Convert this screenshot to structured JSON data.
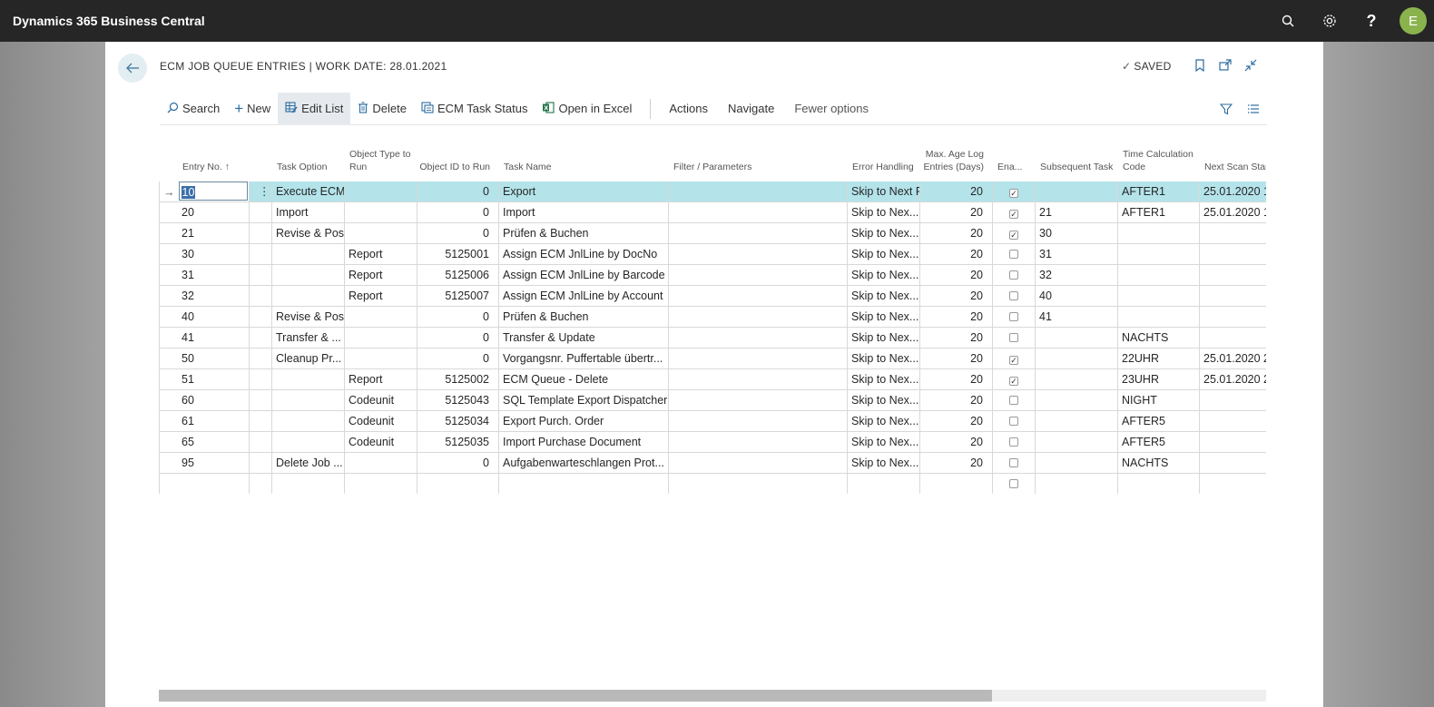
{
  "app": {
    "title": "Dynamics 365 Business Central",
    "avatar_letter": "E"
  },
  "page": {
    "title": "ECM JOB QUEUE ENTRIES | WORK DATE: 28.01.2021",
    "saved": "SAVED"
  },
  "actions": {
    "search": "Search",
    "new": "New",
    "edit_list": "Edit List",
    "delete": "Delete",
    "ecm_task_status": "ECM Task Status",
    "open_in_excel": "Open in Excel",
    "actions": "Actions",
    "navigate": "Navigate",
    "fewer_options": "Fewer options"
  },
  "columns": {
    "entry_no": "Entry No. ↑",
    "task_option": "Task Option",
    "object_type": "Object Type to Run",
    "object_id": "Object ID to Run",
    "task_name": "Task Name",
    "filter": "Filter / Parameters",
    "error_handling": "Error Handling",
    "max_age": "Max. Age Log Entries (Days)",
    "enabled": "Ena...",
    "subsequent": "Subsequent Task",
    "time_code": "Time Calculation Code",
    "next_scan": "Next Scan Star"
  },
  "rows": [
    {
      "entry": "10",
      "task_option": "Execute ECM",
      "object_type": "",
      "object_id": "0",
      "task_name": "Export",
      "filter": "",
      "error": "Skip to Next F",
      "max_age": "20",
      "enabled": true,
      "subsequent": "",
      "time_code": "AFTER1",
      "next_scan": "25.01.2020 1"
    },
    {
      "entry": "20",
      "task_option": "Import",
      "object_type": "",
      "object_id": "0",
      "task_name": "Import",
      "filter": "",
      "error": "Skip to Nex...",
      "max_age": "20",
      "enabled": true,
      "subsequent": "21",
      "time_code": "AFTER1",
      "next_scan": "25.01.2020 1"
    },
    {
      "entry": "21",
      "task_option": "Revise & Post",
      "object_type": "",
      "object_id": "0",
      "task_name": "Prüfen & Buchen",
      "filter": "",
      "error": "Skip to Nex...",
      "max_age": "20",
      "enabled": true,
      "subsequent": "30",
      "time_code": "",
      "next_scan": ""
    },
    {
      "entry": "30",
      "task_option": "",
      "object_type": "Report",
      "object_id": "5125001",
      "task_name": "Assign ECM JnlLine by DocNo",
      "filter": "",
      "error": "Skip to Nex...",
      "max_age": "20",
      "enabled": false,
      "subsequent": "31",
      "time_code": "",
      "next_scan": ""
    },
    {
      "entry": "31",
      "task_option": "",
      "object_type": "Report",
      "object_id": "5125006",
      "task_name": "Assign ECM JnlLine by Barcode",
      "filter": "",
      "error": "Skip to Nex...",
      "max_age": "20",
      "enabled": false,
      "subsequent": "32",
      "time_code": "",
      "next_scan": ""
    },
    {
      "entry": "32",
      "task_option": "",
      "object_type": "Report",
      "object_id": "5125007",
      "task_name": "Assign ECM JnlLine by Account",
      "filter": "",
      "error": "Skip to Nex...",
      "max_age": "20",
      "enabled": false,
      "subsequent": "40",
      "time_code": "",
      "next_scan": ""
    },
    {
      "entry": "40",
      "task_option": "Revise & Post",
      "object_type": "",
      "object_id": "0",
      "task_name": "Prüfen & Buchen",
      "filter": "",
      "error": "Skip to Nex...",
      "max_age": "20",
      "enabled": false,
      "subsequent": "41",
      "time_code": "",
      "next_scan": ""
    },
    {
      "entry": "41",
      "task_option": "Transfer & ...",
      "object_type": "",
      "object_id": "0",
      "task_name": "Transfer & Update",
      "filter": "",
      "error": "Skip to Nex...",
      "max_age": "20",
      "enabled": false,
      "subsequent": "",
      "time_code": "NACHTS",
      "next_scan": ""
    },
    {
      "entry": "50",
      "task_option": "Cleanup Pr...",
      "object_type": "",
      "object_id": "0",
      "task_name": "Vorgangsnr. Puffertable übertr...",
      "filter": "",
      "error": "Skip to Nex...",
      "max_age": "20",
      "enabled": true,
      "subsequent": "",
      "time_code": "22UHR",
      "next_scan": "25.01.2020 2"
    },
    {
      "entry": "51",
      "task_option": "",
      "object_type": "Report",
      "object_id": "5125002",
      "task_name": "ECM Queue - Delete",
      "filter": "",
      "error": "Skip to Nex...",
      "max_age": "20",
      "enabled": true,
      "subsequent": "",
      "time_code": "23UHR",
      "next_scan": "25.01.2020 2"
    },
    {
      "entry": "60",
      "task_option": "",
      "object_type": "Codeunit",
      "object_id": "5125043",
      "task_name": "SQL Template Export Dispatcher",
      "filter": "",
      "error": "Skip to Nex...",
      "max_age": "20",
      "enabled": false,
      "subsequent": "",
      "time_code": "NIGHT",
      "next_scan": ""
    },
    {
      "entry": "61",
      "task_option": "",
      "object_type": "Codeunit",
      "object_id": "5125034",
      "task_name": "Export Purch. Order",
      "filter": "",
      "error": "Skip to Nex...",
      "max_age": "20",
      "enabled": false,
      "subsequent": "",
      "time_code": "AFTER5",
      "next_scan": ""
    },
    {
      "entry": "65",
      "task_option": "",
      "object_type": "Codeunit",
      "object_id": "5125035",
      "task_name": "Import Purchase Document",
      "filter": "",
      "error": "Skip to Nex...",
      "max_age": "20",
      "enabled": false,
      "subsequent": "",
      "time_code": "AFTER5",
      "next_scan": ""
    },
    {
      "entry": "95",
      "task_option": "Delete Job ...",
      "object_type": "",
      "object_id": "0",
      "task_name": "Aufgabenwarteschlangen Prot...",
      "filter": "",
      "error": "Skip to Nex...",
      "max_age": "20",
      "enabled": false,
      "subsequent": "",
      "time_code": "NACHTS",
      "next_scan": ""
    },
    {
      "entry": "",
      "task_option": "",
      "object_type": "",
      "object_id": "",
      "task_name": "",
      "filter": "",
      "error": "",
      "max_age": "",
      "enabled": false,
      "subsequent": "",
      "time_code": "",
      "next_scan": ""
    }
  ],
  "icons": {
    "search": "search-icon",
    "settings": "gear-icon",
    "help": "help-icon",
    "back": "back-arrow-icon",
    "bookmark": "bookmark-icon",
    "open_new": "open-new-window-icon",
    "collapse": "collapse-icon",
    "filter": "filter-icon",
    "list": "list-icon"
  }
}
